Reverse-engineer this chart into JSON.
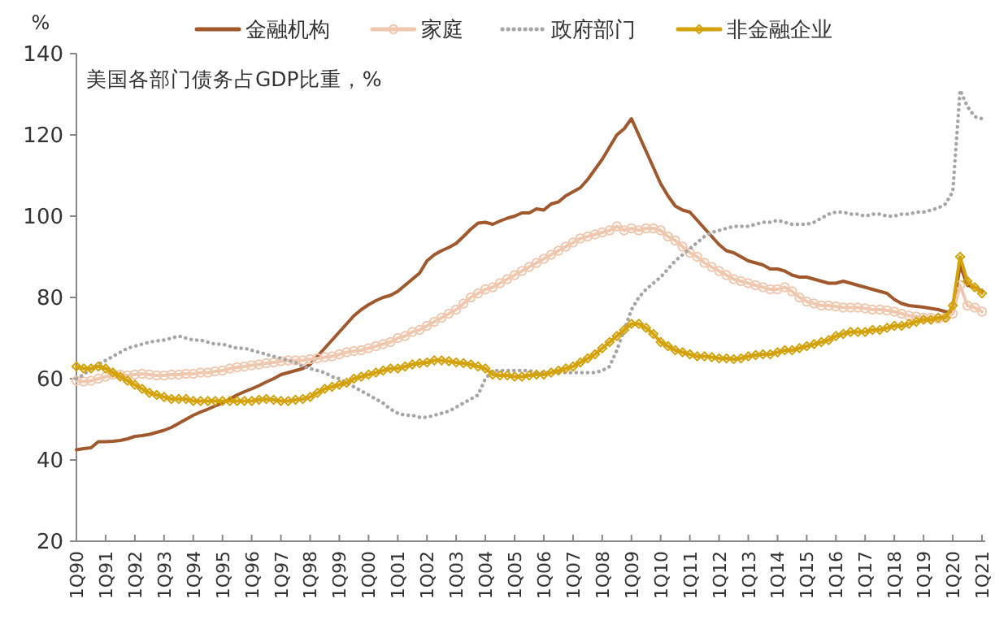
{
  "chart_data": {
    "type": "line",
    "title": "美国各部门债务占GDP比重，%",
    "ylabel": "%",
    "categories": [
      "1Q90",
      null,
      null,
      null,
      "1Q91",
      null,
      null,
      null,
      "1Q92",
      null,
      null,
      null,
      "1Q93",
      null,
      null,
      null,
      "1Q94",
      null,
      null,
      null,
      "1Q95",
      null,
      null,
      null,
      "1Q96",
      null,
      null,
      null,
      "1Q97",
      null,
      null,
      null,
      "1Q98",
      null,
      null,
      null,
      "1Q99",
      null,
      null,
      null,
      "1Q00",
      null,
      null,
      null,
      "1Q01",
      null,
      null,
      null,
      "1Q02",
      null,
      null,
      null,
      "1Q03",
      null,
      null,
      null,
      "1Q04",
      null,
      null,
      null,
      "1Q05",
      null,
      null,
      null,
      "1Q06",
      null,
      null,
      null,
      "1Q07",
      null,
      null,
      null,
      "1Q08",
      null,
      null,
      null,
      "1Q09",
      null,
      null,
      null,
      "1Q10",
      null,
      null,
      null,
      "1Q11",
      null,
      null,
      null,
      "1Q12",
      null,
      null,
      null,
      "1Q13",
      null,
      null,
      null,
      "1Q14",
      null,
      null,
      null,
      "1Q15",
      null,
      null,
      null,
      "1Q16",
      null,
      null,
      null,
      "1Q17",
      null,
      null,
      null,
      "1Q18",
      null,
      null,
      null,
      "1Q19",
      null,
      null,
      null,
      "1Q20",
      null,
      null,
      null,
      "1Q21"
    ],
    "ylim": [
      20,
      140
    ],
    "yticks": [
      20,
      40,
      60,
      80,
      100,
      120,
      140
    ],
    "grid": false,
    "legend": "top",
    "series": [
      {
        "name": "金融机构",
        "color": "#a0582c",
        "marker": "none",
        "line_style": "solid",
        "values": [
          42.5,
          42.8,
          43,
          44.5,
          44.5,
          44.6,
          44.8,
          45.2,
          45.8,
          46,
          46.3,
          46.8,
          47.3,
          48,
          49,
          50,
          51,
          51.8,
          52.5,
          53.3,
          54,
          55,
          56,
          56.8,
          57.5,
          58.3,
          59.2,
          60,
          61,
          61.5,
          62,
          62.5,
          63.5,
          65.5,
          67.5,
          69.5,
          71.5,
          73.5,
          75.5,
          77,
          78.2,
          79.2,
          80,
          80.5,
          81.5,
          83,
          84.5,
          86,
          89,
          90.5,
          91.5,
          92.3,
          93.3,
          95,
          96.8,
          98.3,
          98.5,
          98,
          98.8,
          99.5,
          100,
          100.8,
          100.8,
          101.8,
          101.5,
          103,
          103.5,
          105,
          106,
          107,
          109,
          111.5,
          114,
          117,
          120,
          121.5,
          124,
          120,
          116,
          112,
          108,
          105,
          102.5,
          101.5,
          101,
          99,
          97,
          95,
          93,
          91.5,
          91,
          90,
          89,
          88.5,
          88,
          87,
          87,
          86.5,
          85.5,
          85,
          85,
          84.5,
          84,
          83.5,
          83.5,
          84,
          83.5,
          83,
          82.5,
          82,
          81.5,
          81,
          79.5,
          78.5,
          78,
          77.8,
          77.6,
          77.3,
          77,
          76.5,
          76.3,
          88,
          83,
          82.5,
          81.5
        ]
      },
      {
        "name": "家庭",
        "color": "#f0c8b0",
        "marker": "circle",
        "line_style": "solid",
        "values": [
          59.5,
          59.3,
          59.5,
          60,
          60.5,
          61,
          61,
          60.8,
          61,
          61.2,
          61,
          60.8,
          60.8,
          61,
          61,
          61.2,
          61.2,
          61.5,
          61.5,
          61.8,
          62,
          62.5,
          62.8,
          63,
          63.3,
          63.5,
          63.8,
          64,
          64.3,
          64.5,
          64.5,
          64.5,
          64.8,
          65,
          65.3,
          65.5,
          66,
          66.5,
          66.8,
          67,
          67.5,
          68,
          68.5,
          69,
          70,
          70.5,
          71.5,
          72,
          73,
          74,
          75,
          76,
          77,
          78.5,
          80,
          81,
          82,
          82.5,
          83.5,
          84.5,
          85.5,
          86.5,
          87.5,
          88.5,
          89.5,
          90.5,
          91.5,
          92.5,
          93.5,
          94.5,
          95,
          95.5,
          96,
          96.5,
          97.5,
          96.5,
          97,
          96.5,
          97,
          97,
          96.5,
          95,
          94,
          92.5,
          91,
          90,
          88.5,
          87.5,
          86.5,
          85.5,
          84.5,
          84,
          83.5,
          83,
          82.5,
          82,
          82,
          82.5,
          81.5,
          80,
          79,
          78.5,
          78,
          78,
          77.8,
          77.5,
          77.5,
          77.5,
          77.3,
          77,
          77,
          76.8,
          76.5,
          76,
          75.5,
          75.3,
          75,
          75,
          74.8,
          75,
          76,
          83,
          78,
          77.5,
          76.5
        ]
      },
      {
        "name": "政府部门",
        "color": "#a6a6a6",
        "marker": "none",
        "line_style": "dotted",
        "values": [
          60,
          61,
          62.5,
          63.5,
          64.5,
          65.5,
          66.5,
          67.5,
          68,
          68.5,
          69,
          69.3,
          69.5,
          70,
          70.5,
          70,
          69.5,
          69.5,
          69,
          68.5,
          68.5,
          68,
          67.5,
          67.5,
          67,
          66.5,
          66,
          65.5,
          65,
          64.5,
          64,
          63,
          62.5,
          62,
          61.5,
          60.5,
          60,
          59,
          58,
          57,
          56,
          55,
          54,
          52.5,
          51.5,
          51,
          51,
          50.5,
          50.5,
          51,
          51.5,
          52,
          53,
          54,
          55,
          56,
          60,
          62,
          62,
          62,
          62,
          62,
          62,
          61.5,
          61.5,
          61.5,
          61.5,
          61.5,
          61.5,
          61.5,
          61.5,
          61.5,
          62,
          63,
          67,
          72,
          77,
          80,
          82,
          83.5,
          85,
          87,
          89,
          90.5,
          92,
          93.5,
          95,
          96,
          96.5,
          97,
          97.5,
          97.5,
          97.5,
          98,
          98.5,
          98.5,
          99,
          98.5,
          98,
          98,
          98,
          98.5,
          99.5,
          100.5,
          101,
          101,
          100.5,
          100.5,
          100,
          100.5,
          100.5,
          100,
          100,
          100.5,
          100.5,
          101,
          101,
          101.5,
          102,
          103,
          106,
          131,
          127,
          124.5,
          124
        ]
      },
      {
        "name": "非金融企业",
        "color": "#d4a20a",
        "marker": "diamond",
        "line_style": "solid",
        "values": [
          63,
          62.5,
          62.5,
          63,
          62.5,
          61.5,
          60.5,
          59.5,
          58.5,
          57.5,
          56.5,
          56,
          55.5,
          55,
          55,
          55,
          54.5,
          54.5,
          54.5,
          54.5,
          54.5,
          54.5,
          54.5,
          54.5,
          54.5,
          54.8,
          55,
          54.8,
          54.5,
          54.5,
          54.8,
          55,
          55.5,
          56.5,
          57.5,
          58,
          58.5,
          59,
          60,
          60.5,
          61,
          61.5,
          62,
          62.5,
          62.5,
          63,
          63.5,
          63.8,
          64,
          64.5,
          64.5,
          64.3,
          64,
          63.8,
          63.5,
          63,
          62.5,
          61,
          60.8,
          60.8,
          60.5,
          60.5,
          60.8,
          61,
          61,
          61.5,
          62,
          62.5,
          63,
          64,
          65,
          66,
          67.5,
          69,
          70.5,
          72,
          73.5,
          73.5,
          72.5,
          71,
          69,
          68,
          67,
          66.5,
          66,
          65.5,
          65.5,
          65.3,
          65,
          65,
          64.8,
          65,
          65.5,
          65.8,
          66,
          66,
          66.5,
          67,
          67,
          67.5,
          68,
          68.5,
          69,
          69.5,
          70.5,
          71,
          71.5,
          71.5,
          71.5,
          72,
          72,
          72.5,
          73,
          73,
          73.5,
          74,
          74.5,
          74.5,
          75,
          75,
          78,
          90,
          84,
          82.5,
          81
        ]
      }
    ]
  }
}
